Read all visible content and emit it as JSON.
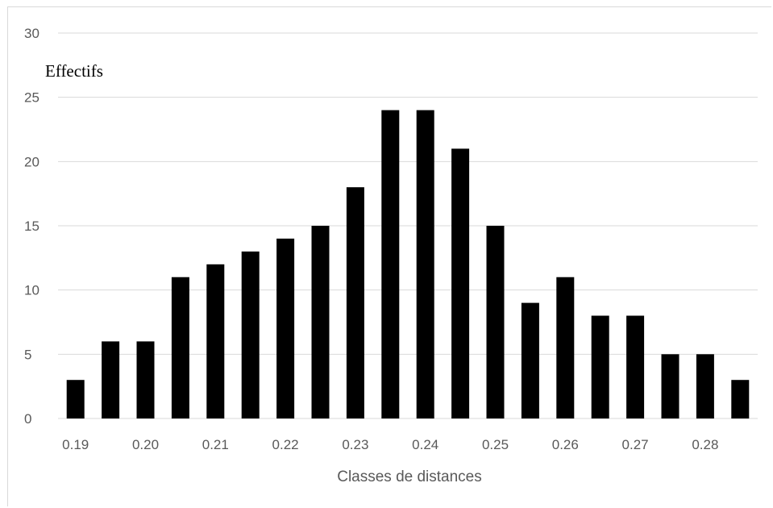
{
  "chart_data": {
    "type": "bar",
    "categories": [
      "0.19",
      "0.195",
      "0.20",
      "0.205",
      "0.21",
      "0.215",
      "0.22",
      "0.225",
      "0.23",
      "0.235",
      "0.24",
      "0.245",
      "0.25",
      "0.255",
      "0.26",
      "0.265",
      "0.27",
      "0.275",
      "0.28",
      "0.285"
    ],
    "values": [
      3,
      6,
      6,
      11,
      12,
      13,
      14,
      15,
      18,
      24,
      24,
      21,
      15,
      9,
      11,
      8,
      8,
      5,
      5,
      3
    ],
    "x_tick_labels": [
      "0.19",
      "0.20",
      "0.21",
      "0.22",
      "0.23",
      "0.24",
      "0.25",
      "0.26",
      "0.27",
      "0.28"
    ],
    "y_ticks": [
      0,
      5,
      10,
      15,
      20,
      25,
      30
    ],
    "title": "",
    "xlabel": "Classes de distances",
    "ylabel": "Effectifs",
    "ylim": [
      0,
      30
    ],
    "grid": true,
    "legend": "none",
    "colors": {
      "bar": "#000000",
      "grid": "#d9d9d9",
      "tick_text": "#595959"
    }
  }
}
